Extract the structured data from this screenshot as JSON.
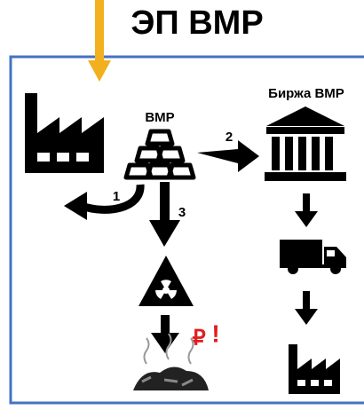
{
  "header": {
    "title": "ЭП ВМР"
  },
  "nodes": [
    {
      "label": "ВМР"
    },
    {
      "label": "Биржа ВМР"
    }
  ],
  "edges": [
    {
      "label": "1"
    },
    {
      "label": "2"
    },
    {
      "label": "3"
    }
  ],
  "cost_marker": {
    "currency": "₽",
    "alert": "!"
  }
}
